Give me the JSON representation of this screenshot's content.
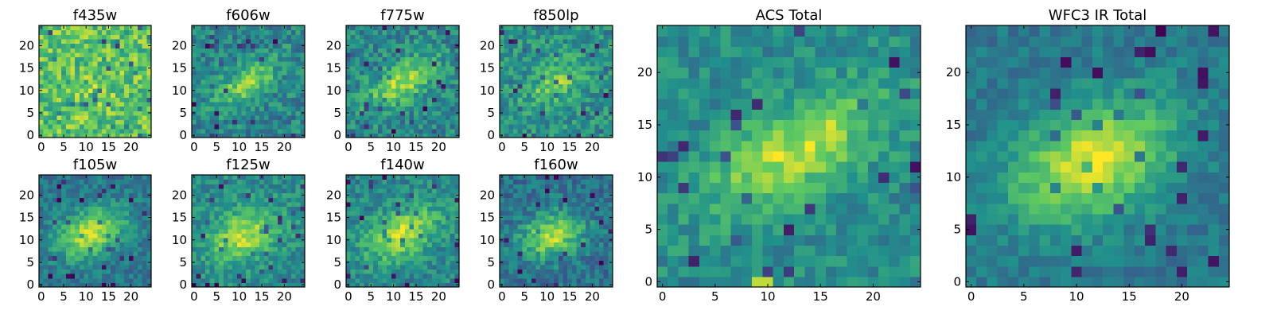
{
  "colormap": {
    "name": "viridis",
    "stops": [
      "#440154",
      "#3b528b",
      "#21918c",
      "#5ec962",
      "#fde725"
    ]
  },
  "chart_data": [
    {
      "type": "heatmap",
      "title": "f435w",
      "grid_size": [
        25,
        25
      ],
      "xlim": [
        0,
        24
      ],
      "ylim": [
        0,
        24
      ],
      "xticks": [
        0,
        5,
        10,
        15,
        20
      ],
      "yticks": [
        0,
        5,
        10,
        15,
        20
      ],
      "seed": 11,
      "source": {
        "cx": 12,
        "cy": 9,
        "amplitude": 0.08,
        "elongation": 1.2,
        "angle": 0.6,
        "width": 3.5
      },
      "background": 0.72,
      "noise": 0.2
    },
    {
      "type": "heatmap",
      "title": "f606w",
      "grid_size": [
        25,
        25
      ],
      "xlim": [
        0,
        24
      ],
      "ylim": [
        0,
        24
      ],
      "xticks": [
        0,
        5,
        10,
        15,
        20
      ],
      "yticks": [
        0,
        5,
        10,
        15,
        20
      ],
      "seed": 22,
      "source": {
        "cx": 11.5,
        "cy": 11.5,
        "amplitude": 0.35,
        "elongation": 2.2,
        "angle": 0.55,
        "width": 2.6
      },
      "background": 0.45,
      "noise": 0.16
    },
    {
      "type": "heatmap",
      "title": "f775w",
      "grid_size": [
        25,
        25
      ],
      "xlim": [
        0,
        24
      ],
      "ylim": [
        0,
        24
      ],
      "xticks": [
        0,
        5,
        10,
        15,
        20
      ],
      "yticks": [
        0,
        5,
        10,
        15,
        20
      ],
      "seed": 33,
      "source": {
        "cx": 12,
        "cy": 12,
        "amplitude": 0.42,
        "elongation": 2.2,
        "angle": 0.55,
        "width": 2.6
      },
      "background": 0.46,
      "noise": 0.16
    },
    {
      "type": "heatmap",
      "title": "f850lp",
      "grid_size": [
        25,
        25
      ],
      "xlim": [
        0,
        24
      ],
      "ylim": [
        0,
        24
      ],
      "xticks": [
        0,
        5,
        10,
        15,
        20
      ],
      "yticks": [
        0,
        5,
        10,
        15,
        20
      ],
      "seed": 44,
      "source": {
        "cx": 12,
        "cy": 12,
        "amplitude": 0.3,
        "elongation": 2.0,
        "angle": 0.55,
        "width": 2.6
      },
      "background": 0.5,
      "noise": 0.16
    },
    {
      "type": "heatmap",
      "title": "f105w",
      "grid_size": [
        25,
        25
      ],
      "xlim": [
        0,
        24
      ],
      "ylim": [
        0,
        24
      ],
      "xticks": [
        0,
        5,
        10,
        15,
        20
      ],
      "yticks": [
        0,
        5,
        10,
        15,
        20
      ],
      "seed": 55,
      "source": {
        "cx": 11,
        "cy": 11.5,
        "amplitude": 0.5,
        "elongation": 1.6,
        "angle": 0.4,
        "width": 3.4
      },
      "background": 0.4,
      "noise": 0.12
    },
    {
      "type": "heatmap",
      "title": "f125w",
      "grid_size": [
        25,
        25
      ],
      "xlim": [
        0,
        24
      ],
      "ylim": [
        0,
        24
      ],
      "xticks": [
        0,
        5,
        10,
        15,
        20
      ],
      "yticks": [
        0,
        5,
        10,
        15,
        20
      ],
      "seed": 66,
      "source": {
        "cx": 11,
        "cy": 11,
        "amplitude": 0.42,
        "elongation": 1.5,
        "angle": 0.4,
        "width": 3.6
      },
      "background": 0.48,
      "noise": 0.13
    },
    {
      "type": "heatmap",
      "title": "f140w",
      "grid_size": [
        25,
        25
      ],
      "xlim": [
        0,
        24
      ],
      "ylim": [
        0,
        24
      ],
      "xticks": [
        0,
        5,
        10,
        15,
        20
      ],
      "yticks": [
        0,
        5,
        10,
        15,
        20
      ],
      "seed": 77,
      "source": {
        "cx": 12,
        "cy": 11.5,
        "amplitude": 0.45,
        "elongation": 1.7,
        "angle": 0.55,
        "width": 3.4
      },
      "background": 0.46,
      "noise": 0.14
    },
    {
      "type": "heatmap",
      "title": "f160w",
      "grid_size": [
        25,
        25
      ],
      "xlim": [
        0,
        24
      ],
      "ylim": [
        0,
        24
      ],
      "xticks": [
        0,
        5,
        10,
        15,
        20
      ],
      "yticks": [
        0,
        5,
        10,
        15,
        20
      ],
      "seed": 88,
      "source": {
        "cx": 11,
        "cy": 11,
        "amplitude": 0.5,
        "elongation": 1.5,
        "angle": 0.3,
        "width": 3.2
      },
      "background": 0.38,
      "noise": 0.14
    },
    {
      "type": "heatmap",
      "title": "ACS Total",
      "grid_size": [
        25,
        25
      ],
      "xlim": [
        0,
        24
      ],
      "ylim": [
        0,
        24
      ],
      "xticks": [
        0,
        5,
        10,
        15,
        20
      ],
      "yticks": [
        0,
        5,
        10,
        15,
        20
      ],
      "seed": 99,
      "source": {
        "cx": 12.5,
        "cy": 12.5,
        "amplitude": 0.42,
        "elongation": 2.2,
        "angle": 0.5,
        "width": 2.8
      },
      "background": 0.48,
      "noise": 0.12,
      "hotspots": [
        [
          9,
          0,
          0.9
        ],
        [
          10,
          0,
          0.9
        ],
        [
          16,
          15,
          0.95
        ]
      ]
    },
    {
      "type": "heatmap",
      "title": "WFC3 IR Total",
      "grid_size": [
        25,
        25
      ],
      "xlim": [
        0,
        24
      ],
      "ylim": [
        0,
        24
      ],
      "xticks": [
        0,
        5,
        10,
        15,
        20
      ],
      "yticks": [
        0,
        5,
        10,
        15,
        20
      ],
      "seed": 111,
      "source": {
        "cx": 11.5,
        "cy": 11.5,
        "amplitude": 0.55,
        "elongation": 1.6,
        "angle": 0.45,
        "width": 3.5
      },
      "background": 0.4,
      "noise": 0.09
    }
  ]
}
